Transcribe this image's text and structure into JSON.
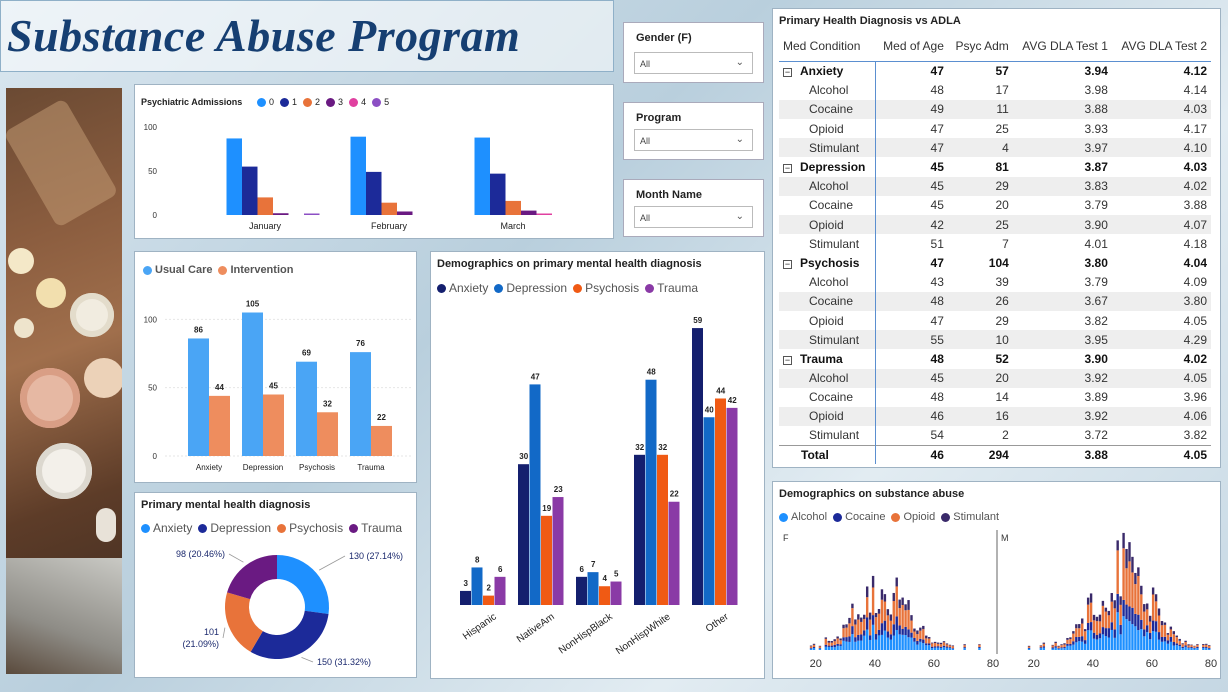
{
  "title": "Substance Abuse Program",
  "slicers": [
    {
      "label": "Gender (F)",
      "value": "All"
    },
    {
      "label": "Program",
      "value": "All"
    },
    {
      "label": "Month Name",
      "value": "All"
    }
  ],
  "colors": {
    "blue_light": "#1e90ff",
    "navy": "#1c2a99",
    "orange": "#e8733a",
    "purple": "#6a1a82",
    "pink": "#e040a0",
    "violet": "#8c4fc4",
    "usual": "#4aa5f5",
    "intervention": "#ee8d5e",
    "demo_anx": "#141f6e",
    "demo_dep": "#1269c7",
    "demo_psy": "#f05a14",
    "demo_tra": "#8a3aa6",
    "sub_alc": "#1e90ff",
    "sub_coc": "#1c2a99",
    "sub_opi": "#e8733a",
    "sub_sti": "#3a2a6a"
  },
  "psych_admissions": {
    "title": "Psychiatric Admissions",
    "chart_data": {
      "type": "bar",
      "categories": [
        "January",
        "February",
        "March"
      ],
      "series": [
        {
          "name": "0",
          "values": [
            87,
            89,
            88
          ]
        },
        {
          "name": "1",
          "values": [
            55,
            49,
            47
          ]
        },
        {
          "name": "2",
          "values": [
            20,
            14,
            16
          ]
        },
        {
          "name": "3",
          "values": [
            2,
            4,
            5
          ]
        },
        {
          "name": "4",
          "values": [
            0,
            0,
            1
          ]
        },
        {
          "name": "5",
          "values": [
            1,
            0,
            0
          ]
        }
      ],
      "yticks": [
        "100",
        "50",
        "0"
      ],
      "ylim": [
        0,
        100
      ]
    }
  },
  "care": {
    "chart_data": {
      "type": "bar",
      "categories": [
        "Anxiety",
        "Depression",
        "Psychosis",
        "Trauma"
      ],
      "series": [
        {
          "name": "Usual Care",
          "values": [
            86,
            105,
            69,
            76
          ]
        },
        {
          "name": "Intervention",
          "values": [
            44,
            45,
            32,
            22
          ]
        }
      ],
      "yticks": [
        "100",
        "50",
        "0"
      ],
      "ylim": [
        0,
        120
      ]
    }
  },
  "primary_dx": {
    "title": "Primary mental health diagnosis",
    "chart_data": {
      "type": "pie",
      "labels": [
        "Anxiety",
        "Depression",
        "Psychosis",
        "Trauma"
      ],
      "values": [
        130,
        150,
        101,
        98
      ],
      "data_labels": [
        "130 (27.14%)",
        "150 (31.32%)",
        "101 (21.09%)",
        "98 (20.46%)"
      ]
    }
  },
  "demographics_dx": {
    "title": "Demographics on primary mental health diagnosis",
    "chart_data": {
      "type": "bar",
      "categories": [
        "Hispanic",
        "NativeAm",
        "NonHispBlack",
        "NonHispWhite",
        "Other"
      ],
      "series": [
        {
          "name": "Anxiety",
          "values": [
            3,
            30,
            6,
            32,
            59
          ]
        },
        {
          "name": "Depression",
          "values": [
            8,
            47,
            7,
            48,
            40
          ]
        },
        {
          "name": "Psychosis",
          "values": [
            2,
            19,
            4,
            32,
            44
          ]
        },
        {
          "name": "Trauma",
          "values": [
            6,
            23,
            5,
            22,
            42
          ]
        }
      ],
      "ylim": [
        0,
        62
      ]
    }
  },
  "table": {
    "title": "Primary Health Diagnosis vs ADLA",
    "columns": [
      "Med Condition",
      "Med of Age",
      "Psyc Adm",
      "AVG DLA Test 1",
      "AVG DLA Test 2"
    ],
    "rows": [
      {
        "type": "grp",
        "cells": [
          "Anxiety",
          "47",
          "57",
          "3.94",
          "4.12"
        ]
      },
      {
        "type": "sub",
        "cells": [
          "Alcohol",
          "48",
          "17",
          "3.98",
          "4.14"
        ]
      },
      {
        "type": "sub",
        "cells": [
          "Cocaine",
          "49",
          "11",
          "3.88",
          "4.03"
        ]
      },
      {
        "type": "sub",
        "cells": [
          "Opioid",
          "47",
          "25",
          "3.93",
          "4.17"
        ]
      },
      {
        "type": "sub",
        "cells": [
          "Stimulant",
          "47",
          "4",
          "3.97",
          "4.10"
        ]
      },
      {
        "type": "grp",
        "cells": [
          "Depression",
          "45",
          "81",
          "3.87",
          "4.03"
        ]
      },
      {
        "type": "sub",
        "cells": [
          "Alcohol",
          "45",
          "29",
          "3.83",
          "4.02"
        ]
      },
      {
        "type": "sub",
        "cells": [
          "Cocaine",
          "45",
          "20",
          "3.79",
          "3.88"
        ]
      },
      {
        "type": "sub",
        "cells": [
          "Opioid",
          "42",
          "25",
          "3.90",
          "4.07"
        ]
      },
      {
        "type": "sub",
        "cells": [
          "Stimulant",
          "51",
          "7",
          "4.01",
          "4.18"
        ]
      },
      {
        "type": "grp",
        "cells": [
          "Psychosis",
          "47",
          "104",
          "3.80",
          "4.04"
        ]
      },
      {
        "type": "sub",
        "cells": [
          "Alcohol",
          "43",
          "39",
          "3.79",
          "4.09"
        ]
      },
      {
        "type": "sub",
        "cells": [
          "Cocaine",
          "48",
          "26",
          "3.67",
          "3.80"
        ]
      },
      {
        "type": "sub",
        "cells": [
          "Opioid",
          "47",
          "29",
          "3.82",
          "4.05"
        ]
      },
      {
        "type": "sub",
        "cells": [
          "Stimulant",
          "55",
          "10",
          "3.95",
          "4.29"
        ]
      },
      {
        "type": "grp",
        "cells": [
          "Trauma",
          "48",
          "52",
          "3.90",
          "4.02"
        ]
      },
      {
        "type": "sub",
        "cells": [
          "Alcohol",
          "45",
          "20",
          "3.92",
          "4.05"
        ]
      },
      {
        "type": "sub",
        "cells": [
          "Cocaine",
          "48",
          "14",
          "3.89",
          "3.96"
        ]
      },
      {
        "type": "sub",
        "cells": [
          "Opioid",
          "46",
          "16",
          "3.92",
          "4.06"
        ]
      },
      {
        "type": "sub",
        "cells": [
          "Stimulant",
          "54",
          "2",
          "3.72",
          "3.82"
        ]
      },
      {
        "type": "total",
        "cells": [
          "Total",
          "46",
          "294",
          "3.88",
          "4.05"
        ]
      }
    ],
    "expand_glyph": "−"
  },
  "substance": {
    "title": "Demographics on substance abuse",
    "legend": [
      "Alcohol",
      "Cocaine",
      "Opioid",
      "Stimulant"
    ],
    "chart_data": {
      "type": "bar",
      "panels": [
        "F",
        "M"
      ],
      "xticks": [
        "20",
        "40",
        "60",
        "80"
      ],
      "xlim": [
        15,
        80
      ]
    }
  }
}
